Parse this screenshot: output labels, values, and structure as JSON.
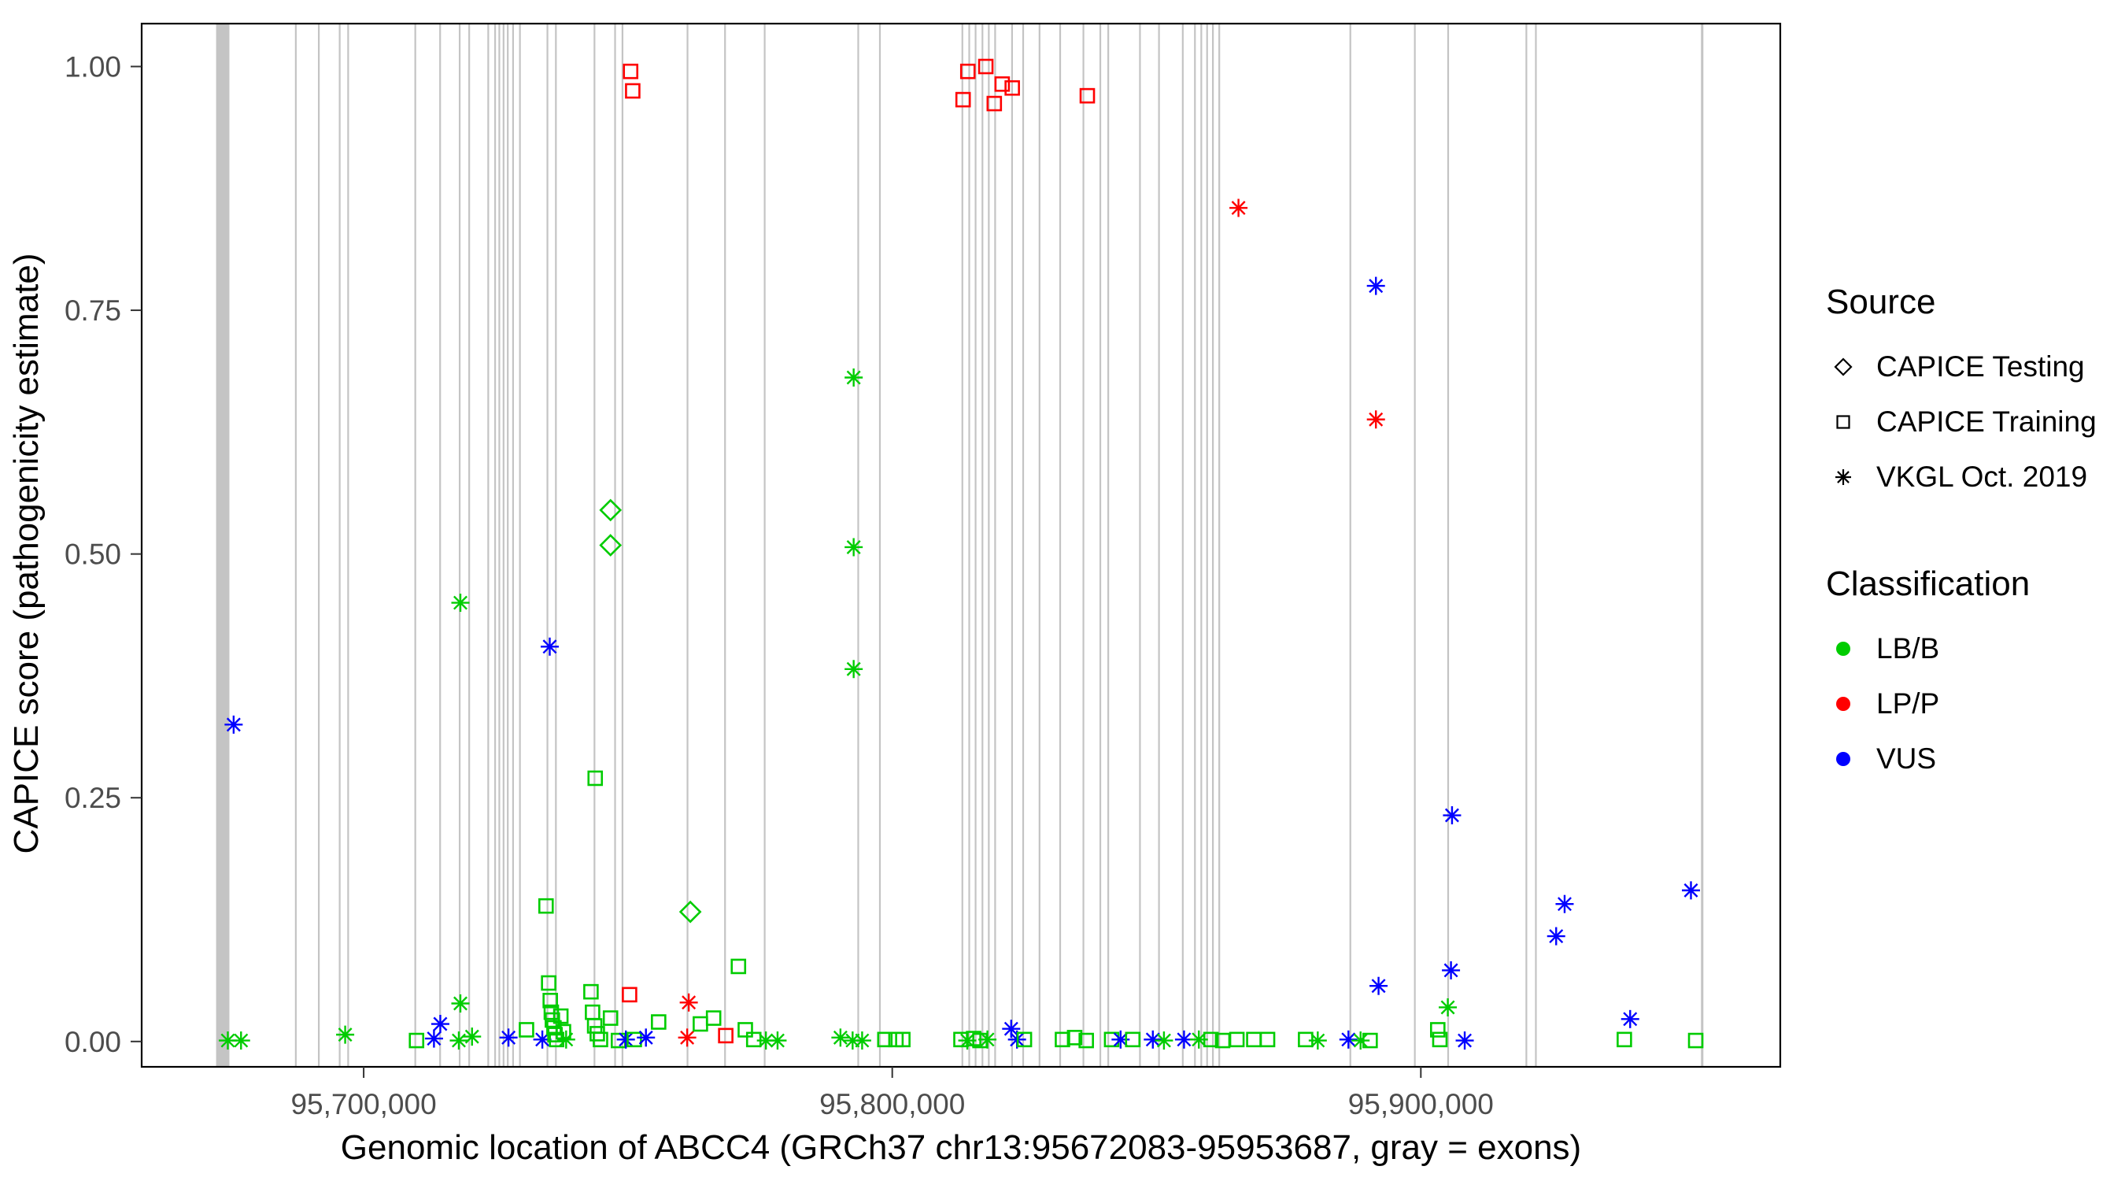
{
  "chart_data": {
    "type": "scatter",
    "xlabel": "Genomic location of ABCC4 (GRCh37 chr13:95672083-95953687, gray = exons)",
    "ylabel": "CAPICE score (pathogenicity estimate)",
    "x_domain": [
      95658000,
      95968000
    ],
    "y_domain": [
      -0.026,
      1.044
    ],
    "x_ticks": [
      {
        "value": 95700000,
        "label": "95,700,000"
      },
      {
        "value": 95800000,
        "label": "95,800,000"
      },
      {
        "value": 95900000,
        "label": "95,900,000"
      }
    ],
    "y_ticks": [
      {
        "value": 0.0,
        "label": "0.00"
      },
      {
        "value": 0.25,
        "label": "0.25"
      },
      {
        "value": 0.5,
        "label": "0.50"
      },
      {
        "value": 0.75,
        "label": "0.75"
      },
      {
        "value": 1.0,
        "label": "1.00"
      }
    ],
    "colors": {
      "LB/B": "#00CC00",
      "LP/P": "#FF0000",
      "VUS": "#0000FF",
      "exon": "#C4C4C4"
    },
    "legend": {
      "source": {
        "title": "Source",
        "items": [
          {
            "shape": "diamond",
            "label": "CAPICE Testing"
          },
          {
            "shape": "square",
            "label": "CAPICE Training"
          },
          {
            "shape": "asterisk",
            "label": "VKGL Oct. 2019"
          }
        ]
      },
      "classification": {
        "title": "Classification",
        "items": [
          {
            "color_key": "LB/B",
            "label": "LB/B"
          },
          {
            "color_key": "LP/P",
            "label": "LP/P"
          },
          {
            "color_key": "VUS",
            "label": "VUS"
          }
        ]
      }
    },
    "exons": [
      [
        95672083,
        95674600
      ],
      [
        95687000,
        95687250
      ],
      [
        95691350,
        95691600
      ],
      [
        95695300,
        95695550
      ],
      [
        95696900,
        95697150
      ],
      [
        95709600,
        95709850
      ],
      [
        95714300,
        95714550
      ],
      [
        95718000,
        95718220
      ],
      [
        95719800,
        95720020
      ],
      [
        95723400,
        95723620
      ],
      [
        95724700,
        95724880
      ],
      [
        95725500,
        95725680
      ],
      [
        95726300,
        95726480
      ],
      [
        95727100,
        95727280
      ],
      [
        95728100,
        95728320
      ],
      [
        95729400,
        95729620
      ],
      [
        95734600,
        95734850
      ],
      [
        95736200,
        95736420
      ],
      [
        95743500,
        95743750
      ],
      [
        95747400,
        95747620
      ],
      [
        95748800,
        95749020
      ],
      [
        95761100,
        95761350
      ],
      [
        95768200,
        95768450
      ],
      [
        95775700,
        95775950
      ],
      [
        95793400,
        95793650
      ],
      [
        95797500,
        95797750
      ],
      [
        95813100,
        95813320
      ],
      [
        95814400,
        95814580
      ],
      [
        95815600,
        95815780
      ],
      [
        95816900,
        95817080
      ],
      [
        95818100,
        95818280
      ],
      [
        95819300,
        95819520
      ],
      [
        95822500,
        95822720
      ],
      [
        95824600,
        95824820
      ],
      [
        95827700,
        95827920
      ],
      [
        95831600,
        95831820
      ],
      [
        95836000,
        95836220
      ],
      [
        95839200,
        95839420
      ],
      [
        95840700,
        95840920
      ],
      [
        95846700,
        95846920
      ],
      [
        95850300,
        95850520
      ],
      [
        95854800,
        95855020
      ],
      [
        95857100,
        95857280
      ],
      [
        95858300,
        95858480
      ],
      [
        95859400,
        95859580
      ],
      [
        95860500,
        95860680
      ],
      [
        95861700,
        95861920
      ],
      [
        95886500,
        95886750
      ],
      [
        95898700,
        95898950
      ],
      [
        95905000,
        95905250
      ],
      [
        95919800,
        95920020
      ],
      [
        95921600,
        95921820
      ],
      [
        95953000,
        95953450
      ]
    ],
    "points_format": [
      "genomic_position",
      "capice_score",
      "classification",
      "source"
    ],
    "points": [
      [
        95750500,
        0.995,
        "LP/P",
        "training"
      ],
      [
        95750900,
        0.975,
        "LP/P",
        "training"
      ],
      [
        95813400,
        0.966,
        "LP/P",
        "training"
      ],
      [
        95814300,
        0.995,
        "LP/P",
        "training"
      ],
      [
        95817700,
        1.0,
        "LP/P",
        "training"
      ],
      [
        95819300,
        0.962,
        "LP/P",
        "training"
      ],
      [
        95820800,
        0.982,
        "LP/P",
        "training"
      ],
      [
        95822700,
        0.978,
        "LP/P",
        "training"
      ],
      [
        95836900,
        0.97,
        "LP/P",
        "training"
      ],
      [
        95865500,
        0.855,
        "LP/P",
        "vkgl"
      ],
      [
        95891500,
        0.775,
        "VUS",
        "vkgl"
      ],
      [
        95891500,
        0.638,
        "LP/P",
        "vkgl"
      ],
      [
        95792700,
        0.681,
        "LB/B",
        "vkgl"
      ],
      [
        95792700,
        0.507,
        "LB/B",
        "vkgl"
      ],
      [
        95792700,
        0.382,
        "LB/B",
        "vkgl"
      ],
      [
        95746700,
        0.545,
        "LB/B",
        "testing"
      ],
      [
        95746700,
        0.509,
        "LB/B",
        "testing"
      ],
      [
        95761800,
        0.133,
        "LB/B",
        "testing"
      ],
      [
        95743800,
        0.27,
        "LB/B",
        "training"
      ],
      [
        95718300,
        0.45,
        "LB/B",
        "vkgl"
      ],
      [
        95735200,
        0.405,
        "VUS",
        "vkgl"
      ],
      [
        95675400,
        0.325,
        "VUS",
        "vkgl"
      ],
      [
        95905900,
        0.232,
        "VUS",
        "vkgl"
      ],
      [
        95927200,
        0.141,
        "VUS",
        "vkgl"
      ],
      [
        95925600,
        0.108,
        "VUS",
        "vkgl"
      ],
      [
        95951100,
        0.155,
        "VUS",
        "vkgl"
      ],
      [
        95939600,
        0.023,
        "VUS",
        "vkgl"
      ],
      [
        95905700,
        0.073,
        "VUS",
        "vkgl"
      ],
      [
        95892000,
        0.057,
        "VUS",
        "vkgl"
      ],
      [
        95905100,
        0.035,
        "LB/B",
        "vkgl"
      ],
      [
        95734500,
        0.139,
        "LB/B",
        "training"
      ],
      [
        95770900,
        0.077,
        "LB/B",
        "training"
      ],
      [
        95750300,
        0.048,
        "LP/P",
        "training"
      ],
      [
        95761500,
        0.04,
        "LP/P",
        "vkgl"
      ],
      [
        95743000,
        0.051,
        "LB/B",
        "training"
      ],
      [
        95735000,
        0.06,
        "LB/B",
        "training"
      ],
      [
        95718300,
        0.039,
        "LB/B",
        "vkgl"
      ],
      [
        95674300,
        0.001,
        "LB/B",
        "vkgl"
      ],
      [
        95676800,
        0.001,
        "LB/B",
        "vkgl"
      ],
      [
        95696500,
        0.007,
        "LB/B",
        "vkgl"
      ],
      [
        95710000,
        0.001,
        "LB/B",
        "training"
      ],
      [
        95713300,
        0.003,
        "VUS",
        "vkgl"
      ],
      [
        95714500,
        0.018,
        "VUS",
        "vkgl"
      ],
      [
        95718000,
        0.001,
        "LB/B",
        "vkgl"
      ],
      [
        95720500,
        0.005,
        "LB/B",
        "vkgl"
      ],
      [
        95727400,
        0.004,
        "VUS",
        "vkgl"
      ],
      [
        95730800,
        0.012,
        "LB/B",
        "training"
      ],
      [
        95733800,
        0.002,
        "VUS",
        "vkgl"
      ],
      [
        95735300,
        0.042,
        "LB/B",
        "training"
      ],
      [
        95735500,
        0.03,
        "LB/B",
        "training"
      ],
      [
        95735700,
        0.022,
        "LB/B",
        "training"
      ],
      [
        95736000,
        0.014,
        "LB/B",
        "training"
      ],
      [
        95736200,
        0.007,
        "LB/B",
        "training"
      ],
      [
        95736500,
        0.002,
        "LB/B",
        "training"
      ],
      [
        95737300,
        0.026,
        "LB/B",
        "training"
      ],
      [
        95737800,
        0.01,
        "LB/B",
        "training"
      ],
      [
        95738300,
        0.002,
        "LB/B",
        "vkgl"
      ],
      [
        95743300,
        0.03,
        "LB/B",
        "training"
      ],
      [
        95743700,
        0.016,
        "LB/B",
        "training"
      ],
      [
        95744200,
        0.008,
        "LB/B",
        "training"
      ],
      [
        95744800,
        0.002,
        "LB/B",
        "training"
      ],
      [
        95746700,
        0.024,
        "LB/B",
        "training"
      ],
      [
        95748200,
        0.001,
        "LB/B",
        "training"
      ],
      [
        95749600,
        0.002,
        "VUS",
        "vkgl"
      ],
      [
        95751200,
        0.002,
        "LB/B",
        "training"
      ],
      [
        95753400,
        0.004,
        "VUS",
        "vkgl"
      ],
      [
        95755800,
        0.02,
        "LB/B",
        "training"
      ],
      [
        95761200,
        0.004,
        "LP/P",
        "vkgl"
      ],
      [
        95763700,
        0.018,
        "LB/B",
        "training"
      ],
      [
        95766200,
        0.024,
        "LB/B",
        "training"
      ],
      [
        95768500,
        0.006,
        "LP/P",
        "training"
      ],
      [
        95772200,
        0.012,
        "LB/B",
        "training"
      ],
      [
        95773800,
        0.002,
        "LB/B",
        "training"
      ],
      [
        95776100,
        0.001,
        "LB/B",
        "vkgl"
      ],
      [
        95778300,
        0.001,
        "LB/B",
        "vkgl"
      ],
      [
        95790200,
        0.004,
        "LB/B",
        "vkgl"
      ],
      [
        95792500,
        0.001,
        "LB/B",
        "vkgl"
      ],
      [
        95794300,
        0.001,
        "LB/B",
        "vkgl"
      ],
      [
        95798600,
        0.002,
        "LB/B",
        "training"
      ],
      [
        95800700,
        0.002,
        "LB/B",
        "training"
      ],
      [
        95802000,
        0.002,
        "LB/B",
        "training"
      ],
      [
        95813000,
        0.002,
        "LB/B",
        "training"
      ],
      [
        95814200,
        0.001,
        "LB/B",
        "vkgl"
      ],
      [
        95815400,
        0.003,
        "LB/B",
        "training"
      ],
      [
        95816600,
        0.001,
        "LB/B",
        "training"
      ],
      [
        95818000,
        0.002,
        "LB/B",
        "vkgl"
      ],
      [
        95822500,
        0.013,
        "VUS",
        "vkgl"
      ],
      [
        95823600,
        0.002,
        "VUS",
        "vkgl"
      ],
      [
        95825000,
        0.002,
        "LB/B",
        "training"
      ],
      [
        95832200,
        0.002,
        "LB/B",
        "training"
      ],
      [
        95834500,
        0.004,
        "LB/B",
        "training"
      ],
      [
        95836700,
        0.001,
        "LB/B",
        "training"
      ],
      [
        95841500,
        0.002,
        "LB/B",
        "training"
      ],
      [
        95843200,
        0.002,
        "VUS",
        "vkgl"
      ],
      [
        95845500,
        0.002,
        "LB/B",
        "training"
      ],
      [
        95849300,
        0.002,
        "VUS",
        "vkgl"
      ],
      [
        95851400,
        0.001,
        "LB/B",
        "vkgl"
      ],
      [
        95855200,
        0.002,
        "VUS",
        "vkgl"
      ],
      [
        95858000,
        0.002,
        "LB/B",
        "vkgl"
      ],
      [
        95860300,
        0.002,
        "LB/B",
        "training"
      ],
      [
        95862500,
        0.001,
        "LB/B",
        "training"
      ],
      [
        95865200,
        0.002,
        "LB/B",
        "training"
      ],
      [
        95868400,
        0.002,
        "LB/B",
        "training"
      ],
      [
        95871000,
        0.002,
        "LB/B",
        "training"
      ],
      [
        95878200,
        0.002,
        "LB/B",
        "training"
      ],
      [
        95880500,
        0.001,
        "LB/B",
        "vkgl"
      ],
      [
        95886300,
        0.002,
        "VUS",
        "vkgl"
      ],
      [
        95888600,
        0.001,
        "LB/B",
        "vkgl"
      ],
      [
        95890400,
        0.001,
        "LB/B",
        "training"
      ],
      [
        95903200,
        0.012,
        "LB/B",
        "training"
      ],
      [
        95903600,
        0.002,
        "LB/B",
        "training"
      ],
      [
        95908300,
        0.001,
        "VUS",
        "vkgl"
      ],
      [
        95938500,
        0.002,
        "LB/B",
        "training"
      ],
      [
        95952000,
        0.001,
        "LB/B",
        "training"
      ]
    ]
  }
}
